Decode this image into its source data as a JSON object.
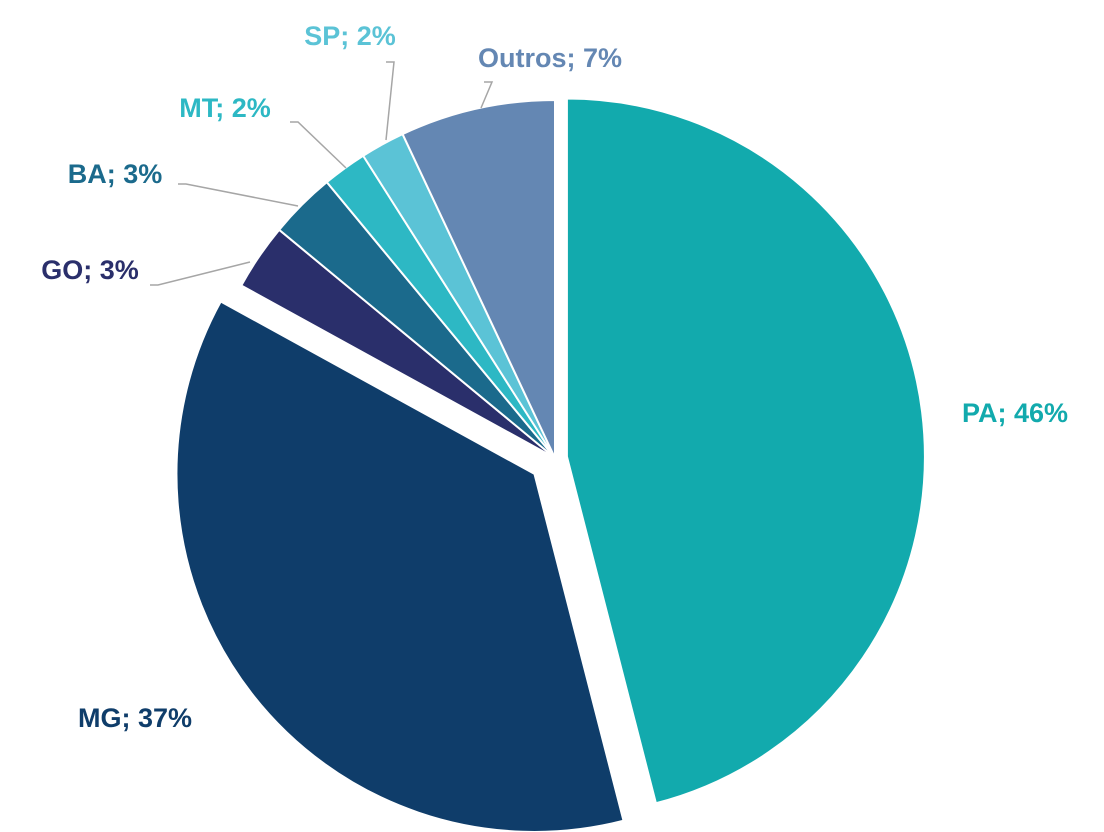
{
  "chart_data": {
    "type": "pie",
    "values": [
      46,
      37,
      3,
      3,
      2,
      2,
      7
    ],
    "value_labels": [
      "PA; 46%",
      "MG; 37%",
      "GO; 3%",
      "BA; 3%",
      "MT; 2%",
      "SP; 2%",
      "Outros; 7%"
    ],
    "colors": [
      "#12aaad",
      "#0f3d6a",
      "#2a2f6b",
      "#1b6a8c",
      "#2db8c4",
      "#5bc3d6",
      "#6487b3"
    ],
    "exploded": [
      0,
      1
    ]
  }
}
